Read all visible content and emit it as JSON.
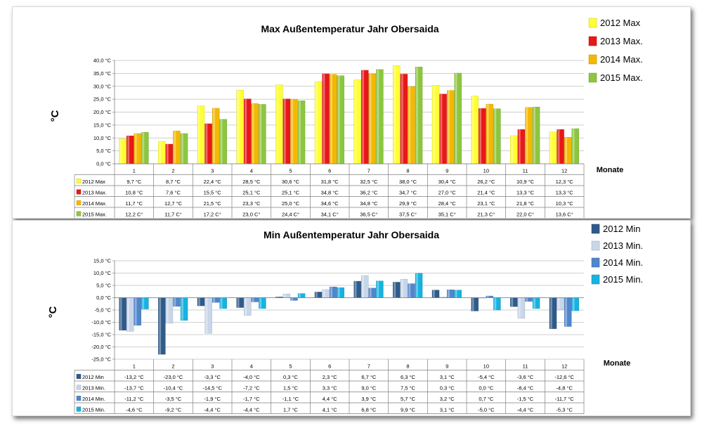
{
  "chart_data": [
    {
      "type": "bar",
      "title": "Max Außentemperatur Jahr Obersaida",
      "xlabel": "Monate",
      "ylabel": "°C",
      "ylim": [
        0,
        40
      ],
      "yticks": [
        "0,0 °C",
        "5,0 °C",
        "10,0 °C",
        "15,0 °C",
        "20,0 °C",
        "25,0 °C",
        "30,0 °C",
        "35,0 °C",
        "40,0 °C"
      ],
      "categories": [
        "1",
        "2",
        "3",
        "4",
        "5",
        "6",
        "7",
        "8",
        "9",
        "10",
        "11",
        "12"
      ],
      "legend_position": "right",
      "series": [
        {
          "name": "2012 Max",
          "table_name": "2012 Max",
          "color": "#ffff33",
          "values": [
            9.7,
            8.7,
            22.4,
            28.5,
            30.6,
            31.8,
            32.5,
            38.0,
            30.4,
            26.2,
            10.9,
            12.3
          ],
          "labels": [
            "9,7 °C",
            "8,7 °C",
            "22,4 °C",
            "28,5 °C",
            "30,6 °C",
            "31,8 °C",
            "32,5 °C",
            "38,0 °C",
            "30,4 °C",
            "26,2 °C",
            "10,9 °C",
            "12,3 °C"
          ]
        },
        {
          "name": "2013 Max.",
          "table_name": "2013 Max.",
          "color": "#e81818",
          "values": [
            10.8,
            7.6,
            15.5,
            25.1,
            25.1,
            34.8,
            36.2,
            34.7,
            27.0,
            21.4,
            13.3,
            13.3
          ],
          "labels": [
            "10,8 °C",
            "7,6 °C",
            "15,5 °C",
            "25,1 °C",
            "25,1 °C",
            "34,8 °C",
            "36,2 °C",
            "34,7 °C",
            "27,0 °C",
            "21,4 °C",
            "13,3 °C",
            "13,3 °C"
          ]
        },
        {
          "name": "2014 Max.",
          "table_name": "2014 Max.",
          "color": "#f4b800",
          "values": [
            11.7,
            12.7,
            21.5,
            23.3,
            25.0,
            34.6,
            34.8,
            29.9,
            28.4,
            23.1,
            21.8,
            10.3
          ],
          "labels": [
            "11,7 °C",
            "12,7 °C",
            "21,5 °C",
            "23,3 °C",
            "25,0 °C",
            "34,6 °C",
            "34,8 °C",
            "29,9 °C",
            "28,4 °C",
            "23,1 °C",
            "21,8 °C",
            "10,3 °C"
          ]
        },
        {
          "name": "2015 Max.",
          "table_name": "2015 Max.",
          "color": "#8cc63f",
          "values": [
            12.2,
            11.7,
            17.2,
            23.0,
            24.4,
            34.1,
            36.5,
            37.5,
            35.1,
            21.3,
            22.0,
            13.6
          ],
          "labels": [
            "12,2 C°",
            "11,7 C°",
            "17,2 C°",
            "23,0 C°",
            "24,4 C°",
            "34,1 C°",
            "36,5 C°",
            "37,5 C°",
            "35,1 C°",
            "21,3 C°",
            "22,0 C°",
            "13,6 C°"
          ]
        }
      ]
    },
    {
      "type": "bar",
      "title": "Min  Außentemperatur Jahr Obersaida",
      "xlabel": "Monate",
      "ylabel": "°C",
      "ylim": [
        -25,
        15
      ],
      "yticks": [
        "-25,0 °C",
        "-20,0 °C",
        "-15,0 °C",
        "-10,0 °C",
        "-5,0 °C",
        "0,0 °C",
        "5,0 °C",
        "10,0 °C",
        "15,0 °C"
      ],
      "categories": [
        "1",
        "2",
        "3",
        "4",
        "5",
        "6",
        "7",
        "8",
        "9",
        "10",
        "11",
        "12"
      ],
      "legend_position": "right",
      "series": [
        {
          "name": "2012 Min",
          "table_name": "2012 Min",
          "color": "#2e5b8a",
          "values": [
            -13.2,
            -23.0,
            -3.3,
            -4.0,
            0.3,
            2.3,
            6.7,
            6.3,
            3.1,
            -5.4,
            -3.6,
            -12.6
          ],
          "labels": [
            "-13,2 °C",
            "-23,0 °C",
            "-3,3 °C",
            "-4,0 °C",
            "0,3 °C",
            "2,3 °C",
            "6,7 °C",
            "6,3 °C",
            "3,1 °C",
            "-5,4 °C",
            "-3,6 °C",
            "-12,6 °C"
          ]
        },
        {
          "name": "2013 Min.",
          "table_name": "2013 Min.",
          "color": "#c8d6ea",
          "values": [
            -13.7,
            -10.4,
            -14.5,
            -7.2,
            1.5,
            3.3,
            9.0,
            7.5,
            0.3,
            0.0,
            -8.4,
            -4.8
          ],
          "labels": [
            "-13,7 °C",
            "-10,4 °C",
            "-14,5 °C",
            "-7,2 °C",
            "1,5 °C",
            "3,3 °C",
            "9,0 °C",
            "7,5 °C",
            "0,3 °C",
            "0,0 °C",
            "-8,4 °C",
            "-4,8 °C"
          ]
        },
        {
          "name": "2014 Min.",
          "table_name": "2014 Min.",
          "color": "#4f86cc",
          "values": [
            -11.2,
            -3.5,
            -1.9,
            -1.7,
            -1.1,
            4.4,
            3.9,
            5.7,
            3.2,
            0.7,
            -1.5,
            -11.7
          ],
          "labels": [
            "-11,2 °C",
            "-3,5 °C",
            "-1,9 °C",
            "-1,7 °C",
            "-1,1 °C",
            "4,4 °C",
            "3,9 °C",
            "5,7 °C",
            "3,2 °C",
            "0,7 °C",
            "-1,5 °C",
            "-11,7 °C"
          ]
        },
        {
          "name": "2015 Min.",
          "table_name": "2015 Min.",
          "color": "#17b2e0",
          "values": [
            -4.6,
            -9.2,
            -4.4,
            -4.4,
            1.7,
            4.1,
            6.8,
            9.9,
            3.1,
            -5.0,
            -4.4,
            -5.3
          ],
          "labels": [
            "-4,6 °C",
            "-9,2 °C",
            "-4,4 °C",
            "-4,4 °C",
            "1,7 °C",
            "4,1 °C",
            "6,8 °C",
            "9,9 °C",
            "3,1 °C",
            "-5,0 °C",
            "-4,4 °C",
            "-5,3 °C"
          ]
        }
      ]
    }
  ]
}
